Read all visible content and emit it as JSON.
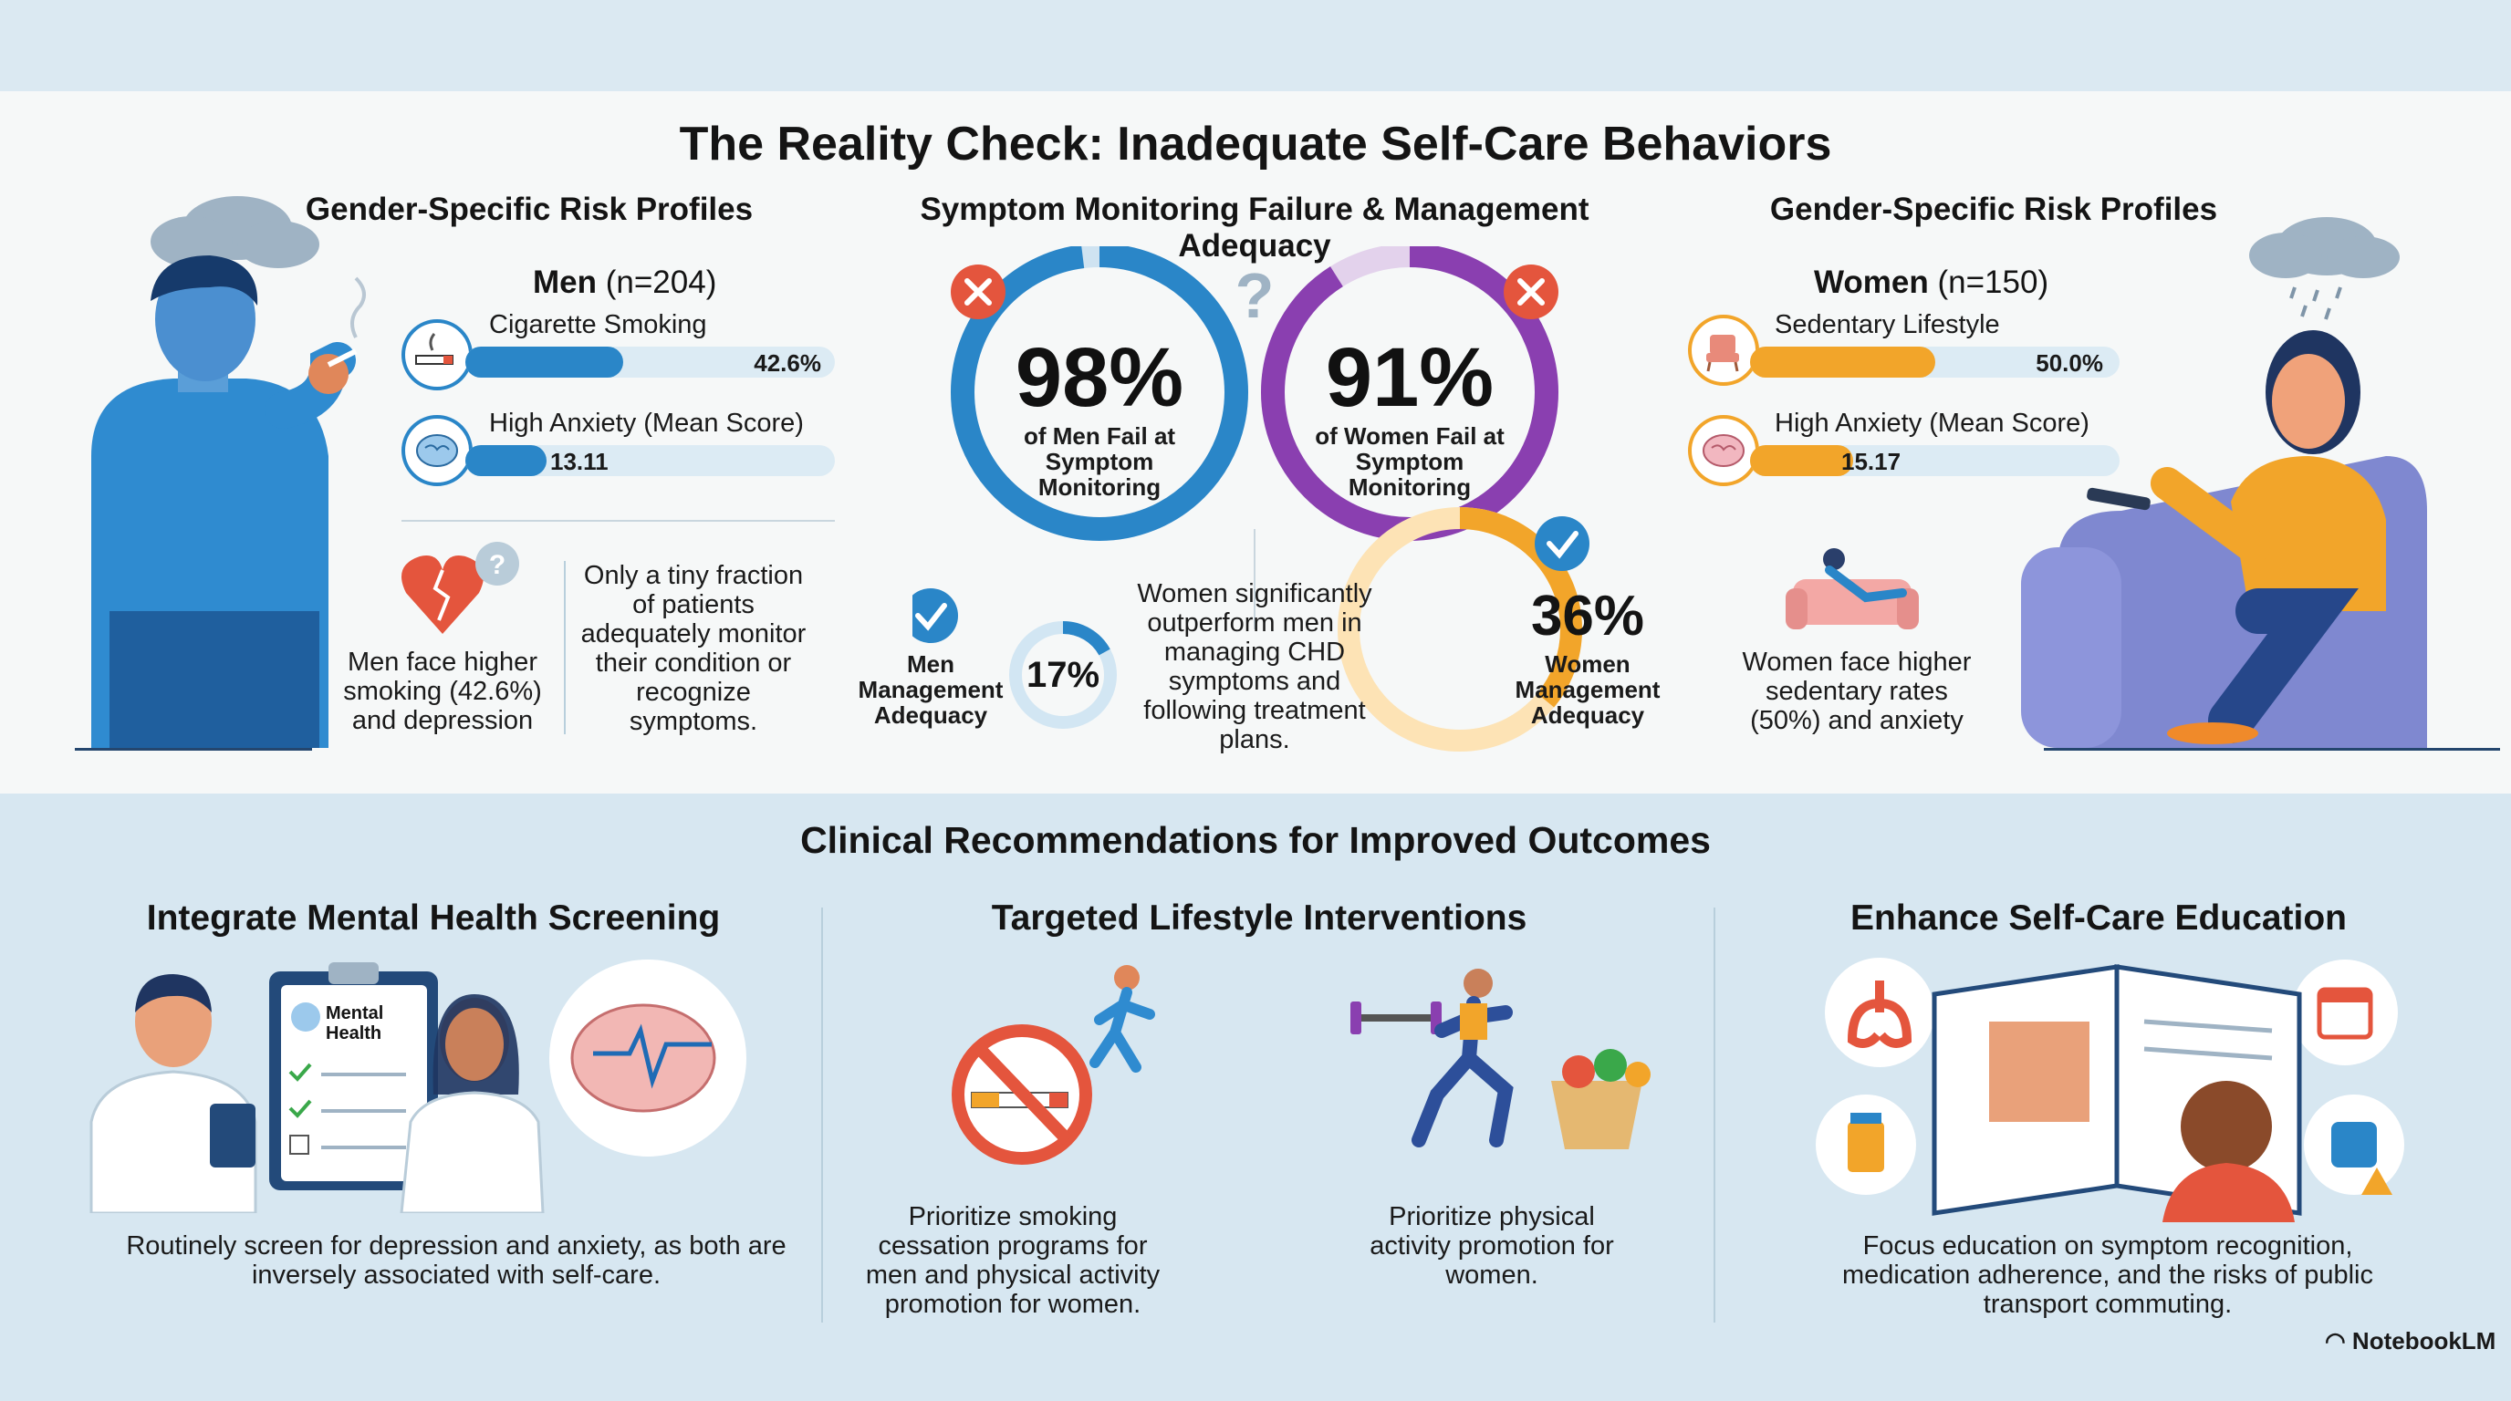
{
  "title": "The Reality Check: Inadequate Self-Care Behaviors",
  "left": {
    "heading": "Gender-Specific Risk Profiles",
    "group_name": "Men",
    "group_n": "(n=204)",
    "bars": [
      {
        "label": "Cigarette Smoking",
        "value_text": "42.6%",
        "fraction": 0.426,
        "icon": "cigarette-icon"
      },
      {
        "label": "High Anxiety (Mean Score)",
        "value_text": "13.11",
        "fraction": 0.22,
        "icon": "brain-icon"
      }
    ],
    "note_left": "Men face higher smoking (42.6%) and depression",
    "note_right": "Only a tiny fraction of patients adequately monitor their condition or recognize symptoms."
  },
  "center": {
    "heading": "Symptom Monitoring Failure & Management Adequacy",
    "men_fail": {
      "value": "98%",
      "caption": "of Men Fail at Symptom Monitoring",
      "fraction": 0.98
    },
    "women_fail": {
      "value": "91%",
      "caption": "of Women Fail at Symptom Monitoring",
      "fraction": 0.91
    },
    "men_adequacy": {
      "label": "Men Management Adequacy",
      "value": "17%",
      "fraction": 0.17
    },
    "women_adequacy": {
      "label": "Women Management Adequacy",
      "value": "36%",
      "fraction": 0.36
    },
    "middle_note": "Women significantly outperform men in managing CHD symptoms and following treatment plans."
  },
  "right": {
    "heading": "Gender-Specific Risk Profiles",
    "group_name": "Women",
    "group_n": "(n=150)",
    "bars": [
      {
        "label": "Sedentary Lifestyle",
        "value_text": "50.0%",
        "fraction": 0.5,
        "icon": "chair-icon"
      },
      {
        "label": "High Anxiety (Mean Score)",
        "value_text": "15.17",
        "fraction": 0.28,
        "icon": "brain-icon"
      }
    ],
    "note": "Women face higher sedentary rates (50%) and anxiety"
  },
  "recommendations": {
    "title": "Clinical Recommendations for Improved Outcomes",
    "items": [
      {
        "heading": "Integrate Mental Health Screening",
        "clipboard_label": "Mental Health",
        "text": "Routinely screen for depression and anxiety, as both are inversely associated with self-care."
      },
      {
        "heading": "Targeted Lifestyle Interventions",
        "text_left": "Prioritize smoking cessation programs for men and physical activity promotion for women.",
        "text_right": "Prioritize physical activity promotion for women."
      },
      {
        "heading": "Enhance Self-Care Education",
        "text": "Focus education on symptom recognition, medication adherence, and the risks of public transport commuting."
      }
    ]
  },
  "brand": "NotebookLM",
  "colors": {
    "blue": "#2a86c8",
    "purple": "#8a3fb0",
    "orange": "#f2a52a",
    "red": "#e4553d",
    "light_track": "#dcebf4"
  }
}
